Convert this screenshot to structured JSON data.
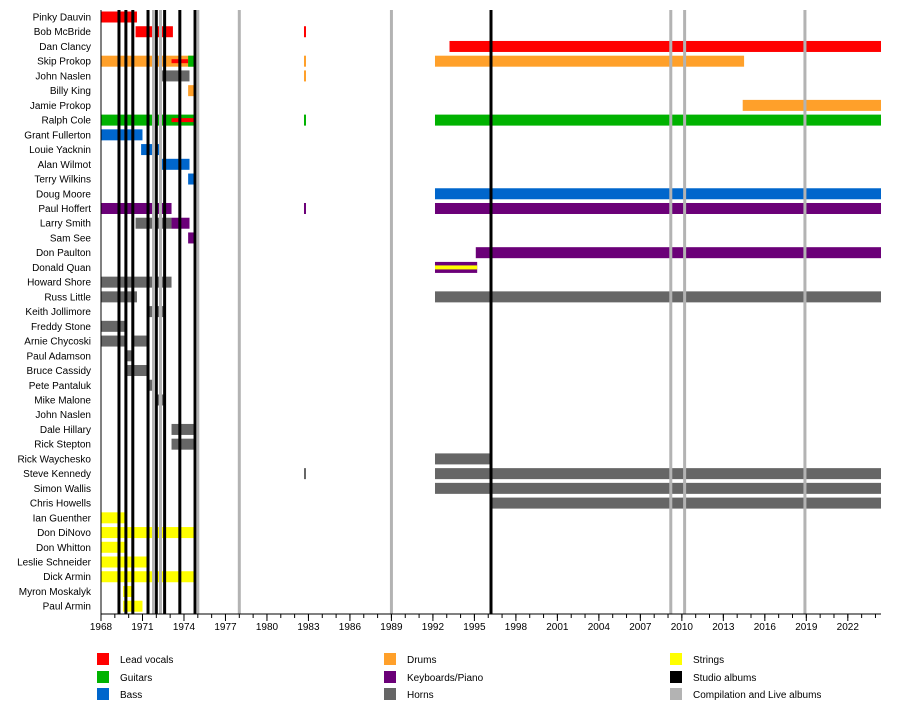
{
  "chart_data": {
    "type": "timeline",
    "xlim": [
      1968,
      2024.4
    ],
    "x_ticks": [
      1968,
      1971,
      1974,
      1977,
      1980,
      1983,
      1986,
      1989,
      1992,
      1995,
      1998,
      2001,
      2004,
      2007,
      2010,
      2013,
      2016,
      2019,
      2022
    ],
    "grid": false,
    "legend_position": "bottom",
    "roles": {
      "vocals": {
        "label": "Lead vocals",
        "color": "#ff0000"
      },
      "guitars": {
        "label": "Guitars",
        "color": "#00b200"
      },
      "bass": {
        "label": "Bass",
        "color": "#0066cc"
      },
      "drums": {
        "label": "Drums",
        "color": "#ffa02a"
      },
      "keys": {
        "label": "Keyboards/Piano",
        "color": "#6b0078"
      },
      "horns": {
        "label": "Horns",
        "color": "#666666"
      },
      "strings": {
        "label": "Strings",
        "color": "#ffff00"
      },
      "studio": {
        "label": "Studio albums",
        "color": "#000000"
      },
      "compilation": {
        "label": "Compilation and Live albums",
        "color": "#b3b3b3"
      }
    },
    "legend_order": [
      [
        "vocals",
        "guitars",
        "bass"
      ],
      [
        "drums",
        "keys",
        "horns"
      ],
      [
        "strings",
        "studio",
        "compilation"
      ]
    ],
    "studio_albums": [
      1969.3,
      1969.8,
      1970.3,
      1971.4,
      1972.0,
      1972.6,
      1973.7,
      1974.8,
      1996.2
    ],
    "compilation_albums": [
      1971.8,
      1972.3,
      1975.0,
      1978.0,
      1989.0,
      2009.2,
      2010.2,
      2018.9
    ],
    "members": [
      {
        "name": "Pinky Dauvin",
        "bars": [
          {
            "role": "vocals",
            "from": 1968,
            "to": 1970.6
          }
        ]
      },
      {
        "name": "Bob McBride",
        "bars": [
          {
            "role": "vocals",
            "from": 1970.5,
            "to": 1973.2
          },
          {
            "role": "vocals",
            "from": 1982.7,
            "to": 1982.85,
            "thin": true
          }
        ]
      },
      {
        "name": "Dan Clancy",
        "bars": [
          {
            "role": "vocals",
            "from": 1993.2,
            "to": 2024.4
          }
        ]
      },
      {
        "name": "Skip Prokop",
        "bars": [
          {
            "role": "drums",
            "from": 1968,
            "to": 1974.8
          },
          {
            "role": "vocals",
            "from": 1973.1,
            "to": 1974.3,
            "stripe": true
          },
          {
            "role": "guitars",
            "from": 1974.3,
            "to": 1974.8
          },
          {
            "role": "drums",
            "from": 1982.7,
            "to": 1982.85,
            "thin": true
          },
          {
            "role": "drums",
            "from": 1992.15,
            "to": 2014.5
          }
        ]
      },
      {
        "name": "John Naslen",
        "bars": [
          {
            "role": "horns",
            "from": 1972.3,
            "to": 1974.4
          },
          {
            "role": "drums",
            "from": 1982.7,
            "to": 1982.85,
            "thin": true
          }
        ]
      },
      {
        "name": "Billy King",
        "bars": [
          {
            "role": "drums",
            "from": 1974.3,
            "to": 1974.8
          }
        ]
      },
      {
        "name": "Jamie Prokop",
        "bars": [
          {
            "role": "drums",
            "from": 2014.4,
            "to": 2024.4
          }
        ]
      },
      {
        "name": "Ralph Cole",
        "bars": [
          {
            "role": "guitars",
            "from": 1968,
            "to": 1974.8
          },
          {
            "role": "vocals",
            "from": 1973.1,
            "to": 1974.8,
            "stripe": true
          },
          {
            "role": "guitars",
            "from": 1982.7,
            "to": 1982.85,
            "thin": true
          },
          {
            "role": "guitars",
            "from": 1992.15,
            "to": 2024.4
          }
        ]
      },
      {
        "name": "Grant Fullerton",
        "bars": [
          {
            "role": "bass",
            "from": 1968,
            "to": 1971.0
          }
        ]
      },
      {
        "name": "Louie Yacknin",
        "bars": [
          {
            "role": "bass",
            "from": 1970.9,
            "to": 1972.3
          }
        ]
      },
      {
        "name": "Alan Wilmot",
        "bars": [
          {
            "role": "bass",
            "from": 1972.3,
            "to": 1974.4
          }
        ]
      },
      {
        "name": "Terry Wilkins",
        "bars": [
          {
            "role": "bass",
            "from": 1974.3,
            "to": 1974.8
          }
        ]
      },
      {
        "name": "Doug Moore",
        "bars": [
          {
            "role": "bass",
            "from": 1992.15,
            "to": 2024.4
          }
        ]
      },
      {
        "name": "Paul Hoffert",
        "bars": [
          {
            "role": "keys",
            "from": 1968,
            "to": 1973.1
          },
          {
            "role": "keys",
            "from": 1982.7,
            "to": 1982.85,
            "thin": true
          },
          {
            "role": "keys",
            "from": 1992.15,
            "to": 2024.4
          }
        ]
      },
      {
        "name": "Larry Smith",
        "bars": [
          {
            "role": "horns",
            "from": 1970.5,
            "to": 1973.1
          },
          {
            "role": "keys",
            "from": 1973.1,
            "to": 1974.4
          }
        ]
      },
      {
        "name": "Sam See",
        "bars": [
          {
            "role": "keys",
            "from": 1974.3,
            "to": 1974.8
          }
        ]
      },
      {
        "name": "Don Paulton",
        "bars": [
          {
            "role": "keys",
            "from": 1995.1,
            "to": 2024.4
          }
        ]
      },
      {
        "name": "Donald Quan",
        "bars": [
          {
            "role": "keys",
            "from": 1992.15,
            "to": 1995.2
          },
          {
            "role": "strings",
            "from": 1992.15,
            "to": 1995.2,
            "stripe": true
          }
        ]
      },
      {
        "name": "Howard Shore",
        "bars": [
          {
            "role": "horns",
            "from": 1968,
            "to": 1973.1
          }
        ]
      },
      {
        "name": "Russ Little",
        "bars": [
          {
            "role": "horns",
            "from": 1968,
            "to": 1970.6
          },
          {
            "role": "horns",
            "from": 1992.15,
            "to": 2024.4
          }
        ]
      },
      {
        "name": "Keith Jollimore",
        "bars": [
          {
            "role": "horns",
            "from": 1971.3,
            "to": 1972.6
          }
        ]
      },
      {
        "name": "Freddy Stone",
        "bars": [
          {
            "role": "horns",
            "from": 1968,
            "to": 1969.7
          }
        ]
      },
      {
        "name": "Arnie Chycoski",
        "bars": [
          {
            "role": "horns",
            "from": 1968,
            "to": 1969.7
          },
          {
            "role": "horns",
            "from": 1970.2,
            "to": 1971.4
          }
        ]
      },
      {
        "name": "Paul Adamson",
        "bars": [
          {
            "role": "horns",
            "from": 1969.7,
            "to": 1970.3
          }
        ]
      },
      {
        "name": "Bruce Cassidy",
        "bars": [
          {
            "role": "horns",
            "from": 1969.7,
            "to": 1971.4
          }
        ]
      },
      {
        "name": "Pete Pantaluk",
        "bars": [
          {
            "role": "horns",
            "from": 1971.3,
            "to": 1971.8
          }
        ]
      },
      {
        "name": "Mike Malone",
        "bars": [
          {
            "role": "horns",
            "from": 1971.8,
            "to": 1972.6
          }
        ]
      },
      {
        "name": "John Naslen",
        "bars": []
      },
      {
        "name": "Dale Hillary",
        "bars": [
          {
            "role": "horns",
            "from": 1973.1,
            "to": 1974.8
          }
        ]
      },
      {
        "name": "Rick Stepton",
        "bars": [
          {
            "role": "horns",
            "from": 1973.1,
            "to": 1974.8
          }
        ]
      },
      {
        "name": "Rick Waychesko",
        "bars": [
          {
            "role": "horns",
            "from": 1992.15,
            "to": 1996.3
          }
        ]
      },
      {
        "name": "Steve Kennedy",
        "bars": [
          {
            "role": "horns",
            "from": 1982.7,
            "to": 1982.85,
            "thin": true
          },
          {
            "role": "horns",
            "from": 1992.15,
            "to": 2024.4
          }
        ]
      },
      {
        "name": "Simon Wallis",
        "bars": [
          {
            "role": "horns",
            "from": 1992.15,
            "to": 2024.4
          }
        ]
      },
      {
        "name": "Chris Howells",
        "bars": [
          {
            "role": "horns",
            "from": 1996.3,
            "to": 2024.4
          }
        ]
      },
      {
        "name": "Ian Guenther",
        "bars": [
          {
            "role": "strings",
            "from": 1968,
            "to": 1969.7
          }
        ]
      },
      {
        "name": "Don DiNovo",
        "bars": [
          {
            "role": "strings",
            "from": 1968,
            "to": 1974.8
          }
        ]
      },
      {
        "name": "Don Whitton",
        "bars": [
          {
            "role": "strings",
            "from": 1968,
            "to": 1969.7
          }
        ]
      },
      {
        "name": "Leslie Schneider",
        "bars": [
          {
            "role": "strings",
            "from": 1968,
            "to": 1971.4
          }
        ]
      },
      {
        "name": "Dick Armin",
        "bars": [
          {
            "role": "strings",
            "from": 1968,
            "to": 1974.8
          }
        ]
      },
      {
        "name": "Myron Moskalyk",
        "bars": [
          {
            "role": "strings",
            "from": 1969.6,
            "to": 1970.3
          }
        ]
      },
      {
        "name": "Paul Armin",
        "bars": [
          {
            "role": "strings",
            "from": 1969.6,
            "to": 1971.0
          }
        ]
      }
    ]
  }
}
